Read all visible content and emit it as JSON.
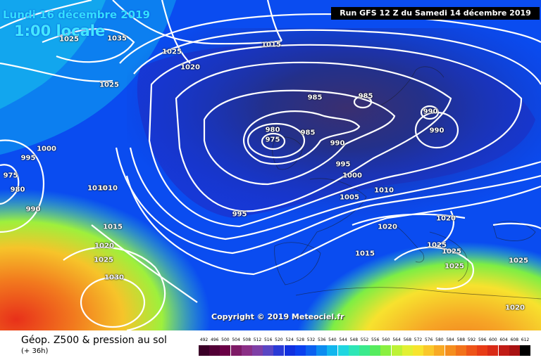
{
  "header": {
    "date": "Lundi 16 décembre 2019",
    "time": "1:00 locale",
    "run": "Run GFS 12 Z du Samedi 14 décembre 2019"
  },
  "copyright": "Copyright © 2019 Meteociel.fr",
  "footer": {
    "title": "Géop. Z500 & pression au sol",
    "subtitle": "(+ 36h)"
  },
  "isobar_labels": [
    "1025",
    "1035",
    "1025",
    "1020",
    "1015",
    "1025",
    "985",
    "985",
    "980",
    "975",
    "985",
    "990",
    "990",
    "990",
    "995",
    "1000",
    "995",
    "975",
    "980",
    "990",
    "1000",
    "1010",
    "1010",
    "1005",
    "1015",
    "1020",
    "1025",
    "1030",
    "995",
    "1010",
    "1020",
    "1015",
    "1020",
    "1025",
    "1025",
    "1025",
    "1025",
    "1020"
  ],
  "legend": {
    "values": [
      "492",
      "496",
      "500",
      "504",
      "508",
      "512",
      "516",
      "520",
      "524",
      "528",
      "532",
      "536",
      "540",
      "544",
      "548",
      "552",
      "556",
      "560",
      "564",
      "568",
      "572",
      "576",
      "580",
      "584",
      "588",
      "592",
      "596",
      "600",
      "604",
      "608",
      "612"
    ],
    "colors": [
      "#3b0028",
      "#520036",
      "#6a0046",
      "#7e1a66",
      "#8b2f86",
      "#7f3fa6",
      "#5a46c4",
      "#2a3ad6",
      "#1030e0",
      "#0a40ef",
      "#0b60f0",
      "#0c8cf0",
      "#12b6ee",
      "#20d6e0",
      "#2ee6b6",
      "#3aea8c",
      "#56ec5e",
      "#8af040",
      "#bef236",
      "#e2f033",
      "#f7e42e",
      "#fac82a",
      "#f8aa24",
      "#f58e1e",
      "#f2721a",
      "#ee5418",
      "#e83c16",
      "#d92a16",
      "#c11c16",
      "#a81212",
      "#000000"
    ]
  }
}
